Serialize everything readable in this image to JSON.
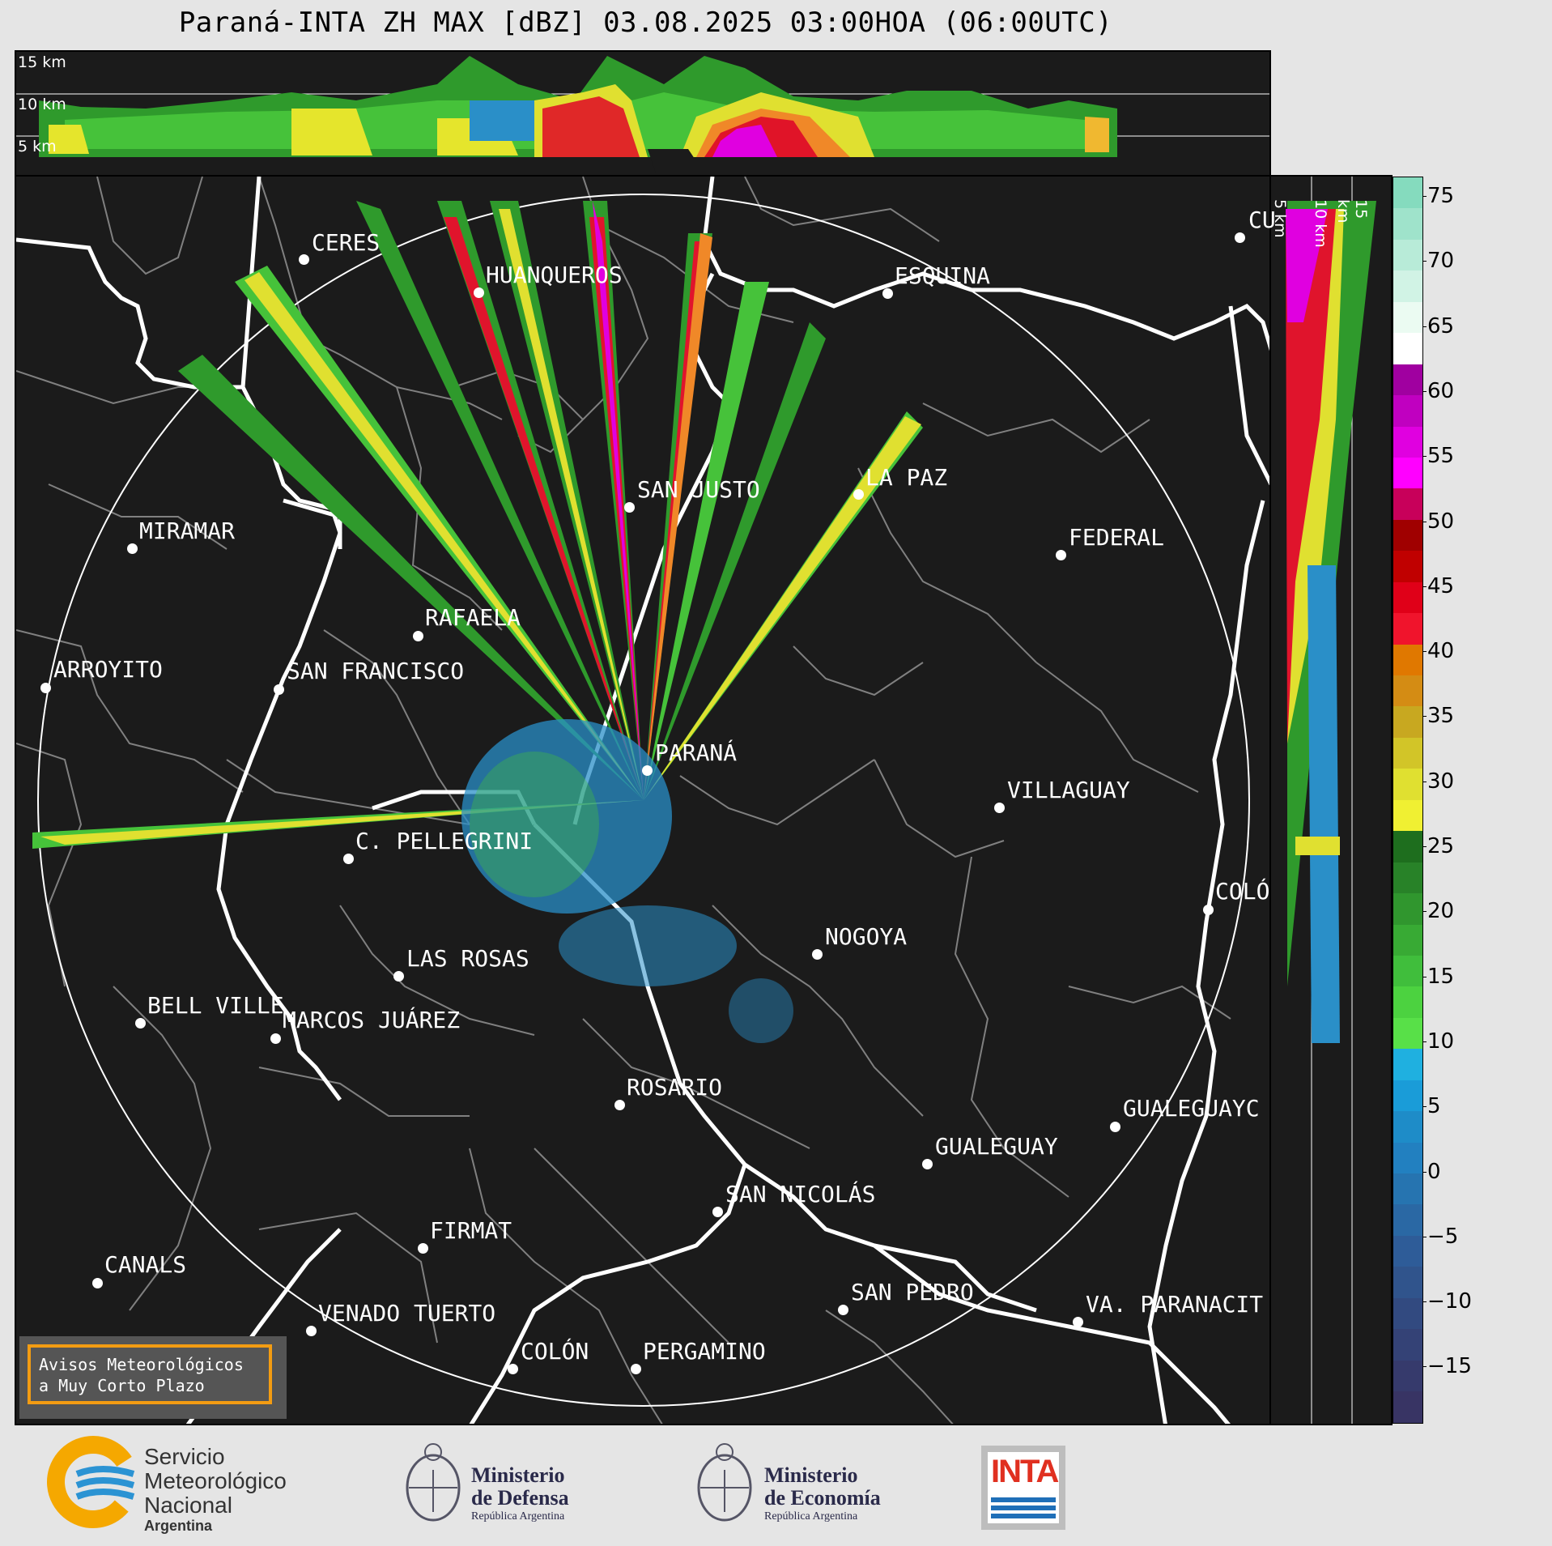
{
  "title": "Paraná-INTA ZH MAX [dBZ] 03.08.2025 03:00HOA (06:00UTC)",
  "top_panel": {
    "labels": [
      "15 km",
      "10 km",
      "5 km"
    ]
  },
  "side_panel": {
    "labels": [
      "5 km",
      "10 km",
      "15 km"
    ]
  },
  "cities": [
    {
      "name": "CERES"
    },
    {
      "name": "HUANQUEROS"
    },
    {
      "name": "ESQUINA"
    },
    {
      "name": "CU"
    },
    {
      "name": "SAN JUSTO"
    },
    {
      "name": "LA PAZ"
    },
    {
      "name": "MIRAMAR"
    },
    {
      "name": "FEDERAL"
    },
    {
      "name": "RAFAELA"
    },
    {
      "name": "ARROYITO"
    },
    {
      "name": "SAN FRANCISCO"
    },
    {
      "name": "PARANÁ"
    },
    {
      "name": "VILLAGUAY"
    },
    {
      "name": "C. PELLEGRINI"
    },
    {
      "name": "COLÓ"
    },
    {
      "name": "NOGOYA"
    },
    {
      "name": "LAS ROSAS"
    },
    {
      "name": "BELL VILLE"
    },
    {
      "name": "MARCOS JUÁREZ"
    },
    {
      "name": "ROSARIO"
    },
    {
      "name": "GUALEGUAYC"
    },
    {
      "name": "GUALEGUAY"
    },
    {
      "name": "SAN NICOLÁS"
    },
    {
      "name": "FIRMAT"
    },
    {
      "name": "CANALS"
    },
    {
      "name": "SAN PEDRO"
    },
    {
      "name": "VENADO TUERTO"
    },
    {
      "name": "VA. PARANACIT"
    },
    {
      "name": "COLÓN"
    },
    {
      "name": "PERGAMINO"
    }
  ],
  "notice": {
    "line1": "Avisos Meteorológicos",
    "line2": "a Muy Corto Plazo"
  },
  "colorbar": {
    "unit": "dBZ",
    "ticks": [
      "75",
      "70",
      "65",
      "60",
      "55",
      "50",
      "45",
      "40",
      "35",
      "30",
      "25",
      "20",
      "15",
      "10",
      "5",
      "0",
      "−5",
      "−10",
      "−15"
    ],
    "colors": [
      "#85dbbe",
      "#9fe3cb",
      "#b8ebd8",
      "#d1f3e5",
      "#ebfbf2",
      "#ffffff",
      "#a000a0",
      "#c000c0",
      "#e000e0",
      "#ff00ff",
      "#c8005a",
      "#a00000",
      "#c00000",
      "#e00018",
      "#f0142c",
      "#e07800",
      "#d48c14",
      "#c8a820",
      "#d2c528",
      "#e0e030",
      "#f0f032",
      "#1e6e1e",
      "#288228",
      "#30962e",
      "#38aa34",
      "#40be3c",
      "#4cd240",
      "#58e048",
      "#1fb0e0",
      "#1a9cd8",
      "#1e8cc8",
      "#2280c0",
      "#2674b0",
      "#2a68a4",
      "#2e5c98",
      "#30548c",
      "#324a80",
      "#344276",
      "#363a6c",
      "#383464"
    ]
  },
  "footer": {
    "smn": [
      "Servicio",
      "Meteorológico",
      "Nacional",
      "Argentina"
    ],
    "defensa": [
      "Ministerio",
      "de Defensa",
      "República Argentina"
    ],
    "economia": [
      "Ministerio",
      "de Economía",
      "República Argentina"
    ],
    "inta": "INTA"
  }
}
